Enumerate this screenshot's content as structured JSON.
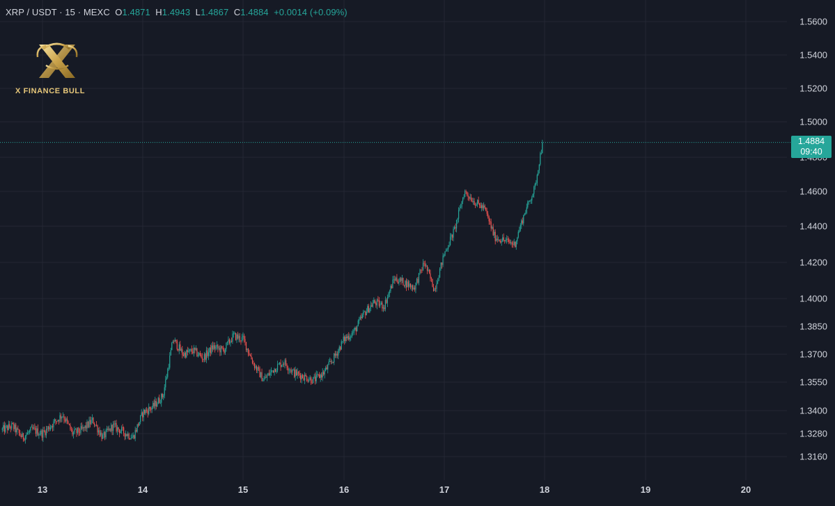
{
  "header": {
    "symbol": "XRP / USDT · 15 · MEXC",
    "o_label": "O",
    "o_value": "1.4871",
    "h_label": "H",
    "h_value": "1.4943",
    "l_label": "L",
    "l_value": "1.4867",
    "c_label": "C",
    "c_value": "1.4884",
    "change": "+0.0014 (+0.09%)"
  },
  "logo": {
    "text": "X FINANCE BULL"
  },
  "price_tag": {
    "price": "1.4884",
    "countdown": "09:40"
  },
  "colors": {
    "up": "#26a69a",
    "down": "#ef5350",
    "background": "#161a25",
    "grid": "#242733",
    "text": "#d1d4dc",
    "logo_gold": "#e6c77a"
  },
  "chart_data": {
    "type": "candlestick",
    "y_ticks": [
      "1.5600",
      "1.5400",
      "1.5200",
      "1.5000",
      "1.4800",
      "1.4600",
      "1.4400",
      "1.4200",
      "1.4000",
      "1.3850",
      "1.3700",
      "1.3550",
      "1.3400",
      "1.3280",
      "1.3160"
    ],
    "x_ticks": [
      "13",
      "14",
      "15",
      "16",
      "17",
      "18",
      "19",
      "20"
    ],
    "last_price": 1.4884,
    "key_points": [
      [
        12.6,
        1.33
      ],
      [
        12.7,
        1.332
      ],
      [
        12.8,
        1.326
      ],
      [
        12.9,
        1.33
      ],
      [
        13.0,
        1.328
      ],
      [
        13.1,
        1.333
      ],
      [
        13.2,
        1.338
      ],
      [
        13.3,
        1.328
      ],
      [
        13.4,
        1.33
      ],
      [
        13.5,
        1.335
      ],
      [
        13.6,
        1.326
      ],
      [
        13.7,
        1.332
      ],
      [
        13.8,
        1.329
      ],
      [
        13.9,
        1.326
      ],
      [
        14.0,
        1.339
      ],
      [
        14.1,
        1.342
      ],
      [
        14.2,
        1.348
      ],
      [
        14.3,
        1.378
      ],
      [
        14.4,
        1.37
      ],
      [
        14.5,
        1.372
      ],
      [
        14.6,
        1.368
      ],
      [
        14.7,
        1.374
      ],
      [
        14.8,
        1.372
      ],
      [
        14.9,
        1.38
      ],
      [
        15.0,
        1.378
      ],
      [
        15.1,
        1.365
      ],
      [
        15.2,
        1.356
      ],
      [
        15.3,
        1.362
      ],
      [
        15.4,
        1.366
      ],
      [
        15.5,
        1.36
      ],
      [
        15.6,
        1.358
      ],
      [
        15.7,
        1.356
      ],
      [
        15.8,
        1.36
      ],
      [
        15.9,
        1.368
      ],
      [
        16.0,
        1.378
      ],
      [
        16.1,
        1.382
      ],
      [
        16.2,
        1.392
      ],
      [
        16.3,
        1.398
      ],
      [
        16.4,
        1.396
      ],
      [
        16.5,
        1.411
      ],
      [
        16.6,
        1.409
      ],
      [
        16.7,
        1.406
      ],
      [
        16.8,
        1.42
      ],
      [
        16.9,
        1.405
      ],
      [
        17.0,
        1.425
      ],
      [
        17.1,
        1.438
      ],
      [
        17.2,
        1.46
      ],
      [
        17.3,
        1.454
      ],
      [
        17.4,
        1.45
      ],
      [
        17.5,
        1.434
      ],
      [
        17.6,
        1.432
      ],
      [
        17.7,
        1.43
      ],
      [
        17.8,
        1.448
      ],
      [
        17.9,
        1.462
      ],
      [
        17.95,
        1.48
      ],
      [
        17.98,
        1.4884
      ]
    ]
  }
}
